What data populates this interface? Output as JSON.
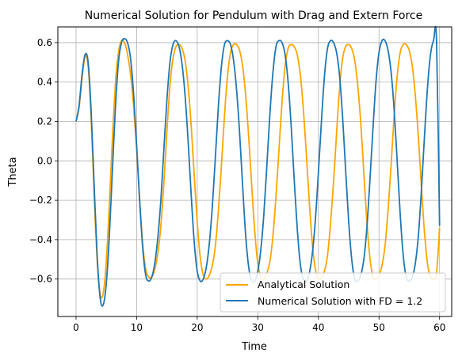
{
  "chart_data": {
    "type": "line",
    "title": "Numerical Solution for Pendulum with Drag and Extern Force",
    "xlabel": "Time",
    "ylabel": "Theta",
    "xlim": [
      -3,
      62
    ],
    "ylim": [
      -0.79,
      0.68
    ],
    "xticks": [
      0,
      10,
      20,
      30,
      40,
      50,
      60
    ],
    "yticks": [
      -0.6,
      -0.4,
      -0.2,
      0.0,
      0.2,
      0.4,
      0.6
    ],
    "xtick_labels": [
      "0",
      "10",
      "20",
      "30",
      "40",
      "50",
      "60"
    ],
    "ytick_labels": [
      "−0.6",
      "−0.4",
      "−0.2",
      "0.0",
      "0.2",
      "0.4",
      "0.6"
    ],
    "grid": true,
    "legend_position": "lower-right",
    "series": [
      {
        "name": "Analytical Solution",
        "color": "#ffa500",
        "x": [
          0,
          0.5,
          1,
          1.5,
          2,
          2.5,
          3,
          3.5,
          4,
          4.5,
          5,
          5.5,
          6,
          6.5,
          7,
          7.5,
          8,
          8.5,
          9,
          9.5,
          10,
          10.5,
          11,
          11.5,
          12,
          12.5,
          13,
          13.5,
          14,
          14.5,
          15,
          15.5,
          16,
          16.5,
          17,
          17.5,
          18,
          18.5,
          19,
          19.5,
          20,
          20.5,
          21,
          21.5,
          22,
          22.5,
          23,
          23.5,
          24,
          24.5,
          25,
          25.5,
          26,
          26.5,
          27,
          27.5,
          28,
          28.5,
          29,
          29.5,
          30,
          30.5,
          31,
          31.5,
          32,
          32.5,
          33,
          33.5,
          34,
          34.5,
          35,
          35.5,
          36,
          36.5,
          37,
          37.5,
          38,
          38.5,
          39,
          39.5,
          40,
          40.5,
          41,
          41.5,
          42,
          42.5,
          43,
          43.5,
          44,
          44.5,
          45,
          45.5,
          46,
          46.5,
          47,
          47.5,
          48,
          48.5,
          49,
          49.5,
          50,
          50.5,
          51,
          51.5,
          52,
          52.5,
          53,
          53.5,
          54,
          54.5,
          55,
          55.5,
          56,
          56.5,
          57,
          57.5,
          58,
          58.5,
          59,
          59.5,
          60
        ],
        "y": [
          0.2,
          0.27,
          0.42,
          0.53,
          0.48,
          0.21,
          -0.18,
          -0.51,
          -0.68,
          -0.67,
          -0.51,
          -0.22,
          0.11,
          0.39,
          0.55,
          0.61,
          0.6,
          0.54,
          0.44,
          0.28,
          0.06,
          -0.2,
          -0.42,
          -0.55,
          -0.59,
          -0.59,
          -0.55,
          -0.47,
          -0.33,
          -0.11,
          0.15,
          0.38,
          0.52,
          0.58,
          0.59,
          0.57,
          0.51,
          0.38,
          0.18,
          -0.07,
          -0.31,
          -0.49,
          -0.58,
          -0.6,
          -0.58,
          -0.53,
          -0.43,
          -0.25,
          -0.02,
          0.23,
          0.43,
          0.55,
          0.59,
          0.59,
          0.56,
          0.48,
          0.33,
          0.12,
          -0.13,
          -0.36,
          -0.52,
          -0.59,
          -0.6,
          -0.57,
          -0.51,
          -0.38,
          -0.18,
          0.06,
          0.3,
          0.48,
          0.57,
          0.59,
          0.58,
          0.54,
          0.44,
          0.27,
          0.04,
          -0.21,
          -0.42,
          -0.55,
          -0.6,
          -0.59,
          -0.56,
          -0.48,
          -0.32,
          -0.11,
          0.14,
          0.37,
          0.52,
          0.58,
          0.59,
          0.57,
          0.51,
          0.38,
          0.19,
          -0.06,
          -0.31,
          -0.49,
          -0.59,
          -0.6,
          -0.58,
          -0.53,
          -0.43,
          -0.25,
          -0.02,
          0.23,
          0.43,
          0.55,
          0.59,
          0.59,
          0.56,
          0.48,
          0.33,
          0.12,
          -0.13,
          -0.36,
          -0.52,
          -0.59,
          -0.6,
          -0.57,
          -0.34
        ]
      },
      {
        "name": "Numerical Solution with FD = 1.2",
        "color": "#1f77b4",
        "x": [
          0,
          0.5,
          1,
          1.5,
          2,
          2.5,
          3,
          3.5,
          4,
          4.5,
          5,
          5.5,
          6,
          6.5,
          7,
          7.5,
          8,
          8.5,
          9,
          9.5,
          10,
          10.5,
          11,
          11.5,
          12,
          12.5,
          13,
          13.5,
          14,
          14.5,
          15,
          15.5,
          16,
          16.5,
          17,
          17.5,
          18,
          18.5,
          19,
          19.5,
          20,
          20.5,
          21,
          21.5,
          22,
          22.5,
          23,
          23.5,
          24,
          24.5,
          25,
          25.5,
          26,
          26.5,
          27,
          27.5,
          28,
          28.5,
          29,
          29.5,
          30,
          30.5,
          31,
          31.5,
          32,
          32.5,
          33,
          33.5,
          34,
          34.5,
          35,
          35.5,
          36,
          36.5,
          37,
          37.5,
          38,
          38.5,
          39,
          39.5,
          40,
          40.5,
          41,
          41.5,
          42,
          42.5,
          43,
          43.5,
          44,
          44.5,
          45,
          45.5,
          46,
          46.5,
          47,
          47.5,
          48,
          48.5,
          49,
          49.5,
          50,
          50.5,
          51,
          51.5,
          52,
          52.5,
          53,
          53.5,
          54,
          54.5,
          55,
          55.5,
          56,
          56.5,
          57,
          57.5,
          58,
          58.5,
          59,
          59.5,
          60
        ],
        "y": [
          0.2,
          0.28,
          0.44,
          0.54,
          0.5,
          0.25,
          -0.13,
          -0.49,
          -0.7,
          -0.73,
          -0.62,
          -0.38,
          -0.05,
          0.27,
          0.5,
          0.6,
          0.62,
          0.6,
          0.52,
          0.34,
          0.08,
          -0.2,
          -0.44,
          -0.58,
          -0.61,
          -0.59,
          -0.52,
          -0.39,
          -0.2,
          0.06,
          0.31,
          0.5,
          0.59,
          0.61,
          0.58,
          0.49,
          0.33,
          0.1,
          -0.17,
          -0.41,
          -0.56,
          -0.61,
          -0.6,
          -0.54,
          -0.42,
          -0.23,
          0.02,
          0.28,
          0.48,
          0.59,
          0.61,
          0.59,
          0.51,
          0.36,
          0.14,
          -0.13,
          -0.38,
          -0.54,
          -0.61,
          -0.61,
          -0.56,
          -0.45,
          -0.27,
          -0.02,
          0.24,
          0.45,
          0.58,
          0.61,
          0.6,
          0.54,
          0.4,
          0.18,
          -0.09,
          -0.34,
          -0.52,
          -0.6,
          -0.61,
          -0.57,
          -0.47,
          -0.3,
          -0.06,
          0.2,
          0.43,
          0.57,
          0.61,
          0.6,
          0.55,
          0.43,
          0.22,
          -0.05,
          -0.31,
          -0.5,
          -0.6,
          -0.61,
          -0.58,
          -0.5,
          -0.34,
          -0.1,
          0.16,
          0.4,
          0.55,
          0.61,
          0.61,
          0.56,
          0.45,
          0.26,
          0.0,
          -0.27,
          -0.48,
          -0.59,
          -0.61,
          -0.59,
          -0.52,
          -0.38,
          -0.15,
          0.12,
          0.37,
          0.54,
          0.61,
          0.61,
          -0.33
        ]
      }
    ]
  }
}
